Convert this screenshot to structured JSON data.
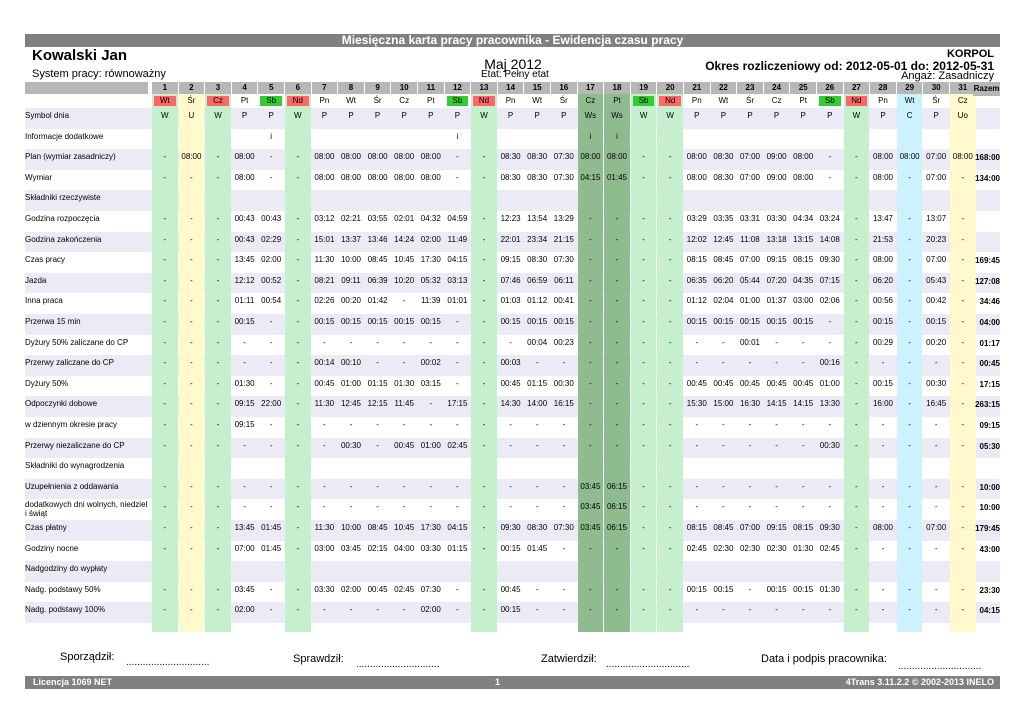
{
  "title": "Miesięczna karta pracy pracownika - Ewidencja czasu pracy",
  "employee_name": "Kowalski Jan",
  "work_system": "System pracy: równoważny",
  "month": "Maj 2012",
  "etat": "Etat: Pełny etat",
  "company": "KORPOL",
  "period": "Okres rozliczeniowy od: 2012-05-01 do: 2012-05-31",
  "angaz": "Angaż: Zasadniczy",
  "razem_label": "Razem",
  "colors": {
    "header_bar": "#808080",
    "day_number_bg": "#b7b7b7",
    "weekend_green": "#c6efce",
    "sunday_yellow": "#fff9cc",
    "holiday_green": "#8fbc8f",
    "leave_blue": "#ccf2ff",
    "red_label": "#ff6666",
    "green_label": "#33cc33",
    "row_band": "#ebebf5"
  },
  "days": [
    {
      "n": "1",
      "wd": "Wt",
      "wdc": "red",
      "bg": "green"
    },
    {
      "n": "2",
      "wd": "Śr",
      "wdc": "",
      "bg": "yellow"
    },
    {
      "n": "3",
      "wd": "Cz",
      "wdc": "red",
      "bg": "green"
    },
    {
      "n": "4",
      "wd": "Pt",
      "wdc": "",
      "bg": ""
    },
    {
      "n": "5",
      "wd": "Sb",
      "wdc": "green",
      "bg": ""
    },
    {
      "n": "6",
      "wd": "Nd",
      "wdc": "red",
      "bg": "green"
    },
    {
      "n": "7",
      "wd": "Pn",
      "wdc": "",
      "bg": ""
    },
    {
      "n": "8",
      "wd": "Wt",
      "wdc": "",
      "bg": ""
    },
    {
      "n": "9",
      "wd": "Śr",
      "wdc": "",
      "bg": ""
    },
    {
      "n": "10",
      "wd": "Cz",
      "wdc": "",
      "bg": ""
    },
    {
      "n": "11",
      "wd": "Pt",
      "wdc": "",
      "bg": ""
    },
    {
      "n": "12",
      "wd": "Sb",
      "wdc": "green",
      "bg": ""
    },
    {
      "n": "13",
      "wd": "Nd",
      "wdc": "red",
      "bg": "green"
    },
    {
      "n": "14",
      "wd": "Pn",
      "wdc": "",
      "bg": ""
    },
    {
      "n": "15",
      "wd": "Wt",
      "wdc": "",
      "bg": ""
    },
    {
      "n": "16",
      "wd": "Śr",
      "wdc": "",
      "bg": ""
    },
    {
      "n": "17",
      "wd": "Cz",
      "wdc": "",
      "bg": "dark"
    },
    {
      "n": "18",
      "wd": "Pt",
      "wdc": "",
      "bg": "dark"
    },
    {
      "n": "19",
      "wd": "Sb",
      "wdc": "green",
      "bg": "green"
    },
    {
      "n": "20",
      "wd": "Nd",
      "wdc": "red",
      "bg": "green"
    },
    {
      "n": "21",
      "wd": "Pn",
      "wdc": "",
      "bg": ""
    },
    {
      "n": "22",
      "wd": "Wt",
      "wdc": "",
      "bg": ""
    },
    {
      "n": "23",
      "wd": "Śr",
      "wdc": "",
      "bg": ""
    },
    {
      "n": "24",
      "wd": "Cz",
      "wdc": "",
      "bg": ""
    },
    {
      "n": "25",
      "wd": "Pt",
      "wdc": "",
      "bg": ""
    },
    {
      "n": "26",
      "wd": "Sb",
      "wdc": "green",
      "bg": ""
    },
    {
      "n": "27",
      "wd": "Nd",
      "wdc": "red",
      "bg": "green"
    },
    {
      "n": "28",
      "wd": "Pn",
      "wdc": "",
      "bg": ""
    },
    {
      "n": "29",
      "wd": "Wt",
      "wdc": "",
      "bg": "blue"
    },
    {
      "n": "30",
      "wd": "Śr",
      "wdc": "",
      "bg": ""
    },
    {
      "n": "31",
      "wd": "Cz",
      "wdc": "",
      "bg": "yellow"
    }
  ],
  "rows": [
    {
      "label": "Symbol dnia",
      "v": [
        "W",
        "U",
        "W",
        "P",
        "P",
        "W",
        "P",
        "P",
        "P",
        "P",
        "P",
        "P",
        "W",
        "P",
        "P",
        "P",
        "Ws",
        "Ws",
        "W",
        "W",
        "P",
        "P",
        "P",
        "P",
        "P",
        "P",
        "W",
        "P",
        "C",
        "P",
        "Uo"
      ],
      "sum": ""
    },
    {
      "label": "Informacje dodatkowe",
      "v": [
        "",
        "",
        "",
        "",
        "i",
        "",
        "",
        "",
        "",
        "",
        "",
        "i",
        "",
        "",
        "",
        "",
        "i",
        "i",
        "",
        "",
        "",
        "",
        "",
        "",
        "",
        "",
        "",
        "",
        "",
        "",
        ""
      ],
      "sum": ""
    },
    {
      "label": "Plan (wymiar zasadniczy)",
      "v": [
        "-",
        "08:00",
        "-",
        "08:00",
        "-",
        "-",
        "08:00",
        "08:00",
        "08:00",
        "08:00",
        "08:00",
        "-",
        "-",
        "08:30",
        "08:30",
        "07:30",
        "08:00",
        "08:00",
        "-",
        "-",
        "08:00",
        "08:30",
        "07:00",
        "09:00",
        "08:00",
        "-",
        "-",
        "08:00",
        "08:00",
        "07:00",
        "08:00"
      ],
      "sum": "168:00"
    },
    {
      "label": "Wymiar",
      "v": [
        "-",
        "-",
        "-",
        "08:00",
        "-",
        "-",
        "08:00",
        "08:00",
        "08:00",
        "08:00",
        "08:00",
        "-",
        "-",
        "08:30",
        "08:30",
        "07:30",
        "04:15",
        "01:45",
        "-",
        "-",
        "08:00",
        "08:30",
        "07:00",
        "09:00",
        "08:00",
        "-",
        "-",
        "08:00",
        "-",
        "07:00",
        "-"
      ],
      "sum": "134:00"
    },
    {
      "label": "Składniki rzeczywiste",
      "v": [
        "",
        "",
        "",
        "",
        "",
        "",
        "",
        "",
        "",
        "",
        "",
        "",
        "",
        "",
        "",
        "",
        "",
        "",
        "",
        "",
        "",
        "",
        "",
        "",
        "",
        "",
        "",
        "",
        "",
        "",
        ""
      ],
      "sum": ""
    },
    {
      "label": "Godzina rozpoczęcia",
      "v": [
        "-",
        "-",
        "-",
        "00:43",
        "00:43",
        "-",
        "03:12",
        "02:21",
        "03:55",
        "02:01",
        "04:32",
        "04:59",
        "-",
        "12:23",
        "13:54",
        "13:29",
        "-",
        "-",
        "-",
        "-",
        "03:29",
        "03:35",
        "03:31",
        "03:30",
        "04:34",
        "03:24",
        "-",
        "13:47",
        "-",
        "13:07",
        "-"
      ],
      "sum": ""
    },
    {
      "label": "Godzina zakończenia",
      "v": [
        "-",
        "-",
        "-",
        "00:43",
        "02:29",
        "-",
        "15:01",
        "13:37",
        "13:46",
        "14:24",
        "02:00",
        "11:49",
        "-",
        "22:01",
        "23:34",
        "21:15",
        "-",
        "-",
        "-",
        "-",
        "12:02",
        "12:45",
        "11:08",
        "13:18",
        "13:15",
        "14:08",
        "-",
        "21:53",
        "-",
        "20:23",
        "-"
      ],
      "sum": ""
    },
    {
      "label": "Czas pracy",
      "v": [
        "-",
        "-",
        "-",
        "13:45",
        "02:00",
        "-",
        "11:30",
        "10:00",
        "08:45",
        "10:45",
        "17:30",
        "04:15",
        "-",
        "09:15",
        "08:30",
        "07:30",
        "-",
        "-",
        "-",
        "-",
        "08:15",
        "08:45",
        "07:00",
        "09:15",
        "08:15",
        "09:30",
        "-",
        "08:00",
        "-",
        "07:00",
        "-"
      ],
      "sum": "169:45"
    },
    {
      "label": " Jazda",
      "v": [
        "-",
        "-",
        "-",
        "12:12",
        "00:52",
        "-",
        "08:21",
        "09:11",
        "06:39",
        "10:20",
        "05:32",
        "03:13",
        "-",
        "07:46",
        "06:59",
        "06:11",
        "-",
        "-",
        "-",
        "-",
        "06:35",
        "06:20",
        "05:44",
        "07:20",
        "04:35",
        "07:15",
        "-",
        "06:20",
        "-",
        "05:43",
        "-"
      ],
      "sum": "127:08"
    },
    {
      "label": " Inna praca",
      "v": [
        "-",
        "-",
        "-",
        "01:11",
        "00:54",
        "-",
        "02:26",
        "00:20",
        "01:42",
        "-",
        "11:39",
        "01:01",
        "-",
        "01:03",
        "01:12",
        "00:41",
        "-",
        "-",
        "-",
        "-",
        "01:12",
        "02:04",
        "01:00",
        "01:37",
        "03:00",
        "02:06",
        "-",
        "00:56",
        "-",
        "00:42",
        "-"
      ],
      "sum": "34:46"
    },
    {
      "label": " Przerwa 15 min",
      "v": [
        "-",
        "-",
        "-",
        "00:15",
        "-",
        "-",
        "00:15",
        "00:15",
        "00:15",
        "00:15",
        "00:15",
        "-",
        "-",
        "00:15",
        "00:15",
        "00:15",
        "-",
        "-",
        "-",
        "-",
        "00:15",
        "00:15",
        "00:15",
        "00:15",
        "00:15",
        "-",
        "-",
        "00:15",
        "-",
        "00:15",
        "-"
      ],
      "sum": "04:00"
    },
    {
      "label": " Dyżury 50% zaliczane do CP",
      "v": [
        "-",
        "-",
        "-",
        "-",
        "-",
        "-",
        "-",
        "-",
        "-",
        "-",
        "-",
        "-",
        "-",
        "-",
        "00:04",
        "00:23",
        "-",
        "-",
        "-",
        "-",
        "-",
        "-",
        "00:01",
        "-",
        "-",
        "-",
        "-",
        "00:29",
        "-",
        "00:20",
        "-"
      ],
      "sum": "01:17"
    },
    {
      "label": " Przerwy zaliczane do CP",
      "v": [
        "-",
        "-",
        "-",
        "-",
        "-",
        "-",
        "00:14",
        "00:10",
        "-",
        "-",
        "00:02",
        "-",
        "-",
        "00:03",
        "-",
        "-",
        "-",
        "-",
        "-",
        "-",
        "-",
        "-",
        "-",
        "-",
        "-",
        "00:16",
        "-",
        "-",
        "-",
        "-",
        "-"
      ],
      "sum": "00:45"
    },
    {
      "label": "Dyżury 50%",
      "v": [
        "-",
        "-",
        "-",
        "01:30",
        "-",
        "-",
        "00:45",
        "01:00",
        "01:15",
        "01:30",
        "03:15",
        "-",
        "-",
        "00:45",
        "01:15",
        "00:30",
        "-",
        "-",
        "-",
        "-",
        "00:45",
        "00:45",
        "00:45",
        "00:45",
        "00:45",
        "01:00",
        "-",
        "00:15",
        "-",
        "00:30",
        "-"
      ],
      "sum": "17:15"
    },
    {
      "label": "Odpoczynki dobowe",
      "v": [
        "-",
        "-",
        "-",
        "09:15",
        "22:00",
        "-",
        "11:30",
        "12:45",
        "12:15",
        "11:45",
        "-",
        "17:15",
        "-",
        "14:30",
        "14:00",
        "16:15",
        "-",
        "-",
        "-",
        "-",
        "15:30",
        "15:00",
        "16:30",
        "14:15",
        "14:15",
        "13:30",
        "-",
        "16:00",
        "-",
        "16:45",
        "-"
      ],
      "sum": "263:15"
    },
    {
      "label": " w dziennym okresie pracy",
      "v": [
        "-",
        "-",
        "-",
        "09:15",
        "-",
        "-",
        "-",
        "-",
        "-",
        "-",
        "-",
        "-",
        "-",
        "-",
        "-",
        "-",
        "-",
        "-",
        "-",
        "-",
        "-",
        "-",
        "-",
        "-",
        "-",
        "-",
        "-",
        "-",
        "-",
        "-",
        "-"
      ],
      "sum": "09:15"
    },
    {
      "label": "Przerwy niezaliczane do CP",
      "v": [
        "-",
        "-",
        "-",
        "-",
        "-",
        "-",
        "-",
        "00:30",
        "-",
        "00:45",
        "01:00",
        "02:45",
        "-",
        "-",
        "-",
        "-",
        "-",
        "-",
        "-",
        "-",
        "-",
        "-",
        "-",
        "-",
        "-",
        "00:30",
        "-",
        "-",
        "-",
        "-",
        "-"
      ],
      "sum": "05:30"
    },
    {
      "label": "Składniki do wynagrodzenia",
      "v": [
        "",
        "",
        "",
        "",
        "",
        "",
        "",
        "",
        "",
        "",
        "",
        "",
        "",
        "",
        "",
        "",
        "",
        "",
        "",
        "",
        "",
        "",
        "",
        "",
        "",
        "",
        "",
        "",
        "",
        "",
        ""
      ],
      "sum": ""
    },
    {
      "label": "Uzupełnienia z oddawania",
      "v": [
        "-",
        "-",
        "-",
        "-",
        "-",
        "-",
        "-",
        "-",
        "-",
        "-",
        "-",
        "-",
        "-",
        "-",
        "-",
        "-",
        "03:45",
        "06:15",
        "-",
        "-",
        "-",
        "-",
        "-",
        "-",
        "-",
        "-",
        "-",
        "-",
        "-",
        "-",
        "-"
      ],
      "sum": "10:00"
    },
    {
      "label": " dodatkowych dni wolnych, niedziel i świąt",
      "v": [
        "-",
        "-",
        "-",
        "-",
        "-",
        "-",
        "-",
        "-",
        "-",
        "-",
        "-",
        "-",
        "-",
        "-",
        "-",
        "-",
        "03:45",
        "06:15",
        "-",
        "-",
        "-",
        "-",
        "-",
        "-",
        "-",
        "-",
        "-",
        "-",
        "-",
        "-",
        "-"
      ],
      "sum": "10:00"
    },
    {
      "label": "Czas płatny",
      "v": [
        "-",
        "-",
        "-",
        "13:45",
        "01:45",
        "-",
        "11:30",
        "10:00",
        "08:45",
        "10:45",
        "17:30",
        "04:15",
        "-",
        "09:30",
        "08:30",
        "07:30",
        "03:45",
        "06:15",
        "-",
        "-",
        "08:15",
        "08:45",
        "07:00",
        "09:15",
        "08:15",
        "09:30",
        "-",
        "08:00",
        "-",
        "07:00",
        "-"
      ],
      "sum": "179:45"
    },
    {
      "label": "Godziny nocne",
      "v": [
        "-",
        "-",
        "-",
        "07:00",
        "01:45",
        "-",
        "03:00",
        "03:45",
        "02:15",
        "04:00",
        "03:30",
        "01:15",
        "-",
        "00:15",
        "01:45",
        "-",
        "-",
        "-",
        "-",
        "-",
        "02:45",
        "02:30",
        "02:30",
        "02:30",
        "01:30",
        "02:45",
        "-",
        "-",
        "-",
        "-",
        "-"
      ],
      "sum": "43:00"
    },
    {
      "label": "Nadgodziny do wypłaty",
      "v": [
        "",
        "",
        "",
        "",
        "",
        "",
        "",
        "",
        "",
        "",
        "",
        "",
        "",
        "",
        "",
        "",
        "",
        "",
        "",
        "",
        "",
        "",
        "",
        "",
        "",
        "",
        "",
        "",
        "",
        "",
        ""
      ],
      "sum": ""
    },
    {
      "label": " Nadg. podstawy 50%",
      "v": [
        "-",
        "-",
        "-",
        "03:45",
        "-",
        "-",
        "03:30",
        "02:00",
        "00:45",
        "02:45",
        "07:30",
        "-",
        "-",
        "00:45",
        "-",
        "-",
        "-",
        "-",
        "-",
        "-",
        "00:15",
        "00:15",
        "-",
        "00:15",
        "00:15",
        "01:30",
        "-",
        "-",
        "-",
        "-",
        "-"
      ],
      "sum": "23:30"
    },
    {
      "label": " Nadg. podstawy 100%",
      "v": [
        "-",
        "-",
        "-",
        "02:00",
        "-",
        "-",
        "-",
        "-",
        "-",
        "-",
        "02:00",
        "-",
        "-",
        "00:15",
        "-",
        "-",
        "-",
        "-",
        "-",
        "-",
        "-",
        "-",
        "-",
        "-",
        "-",
        "-",
        "-",
        "-",
        "-",
        "-",
        "-"
      ],
      "sum": "04:15"
    }
  ],
  "footer": {
    "sporzadzil": "Sporządził:",
    "sprawdzil": "Sprawdził:",
    "zatwierdzil": "Zatwierdził:",
    "podpis": "Data i podpis pracownika:",
    "dots": "..............................",
    "license": "Licencja 1069 NET",
    "page": "1",
    "version": "4Trans 3.11.2.2 © 2002-2013 INELO"
  }
}
